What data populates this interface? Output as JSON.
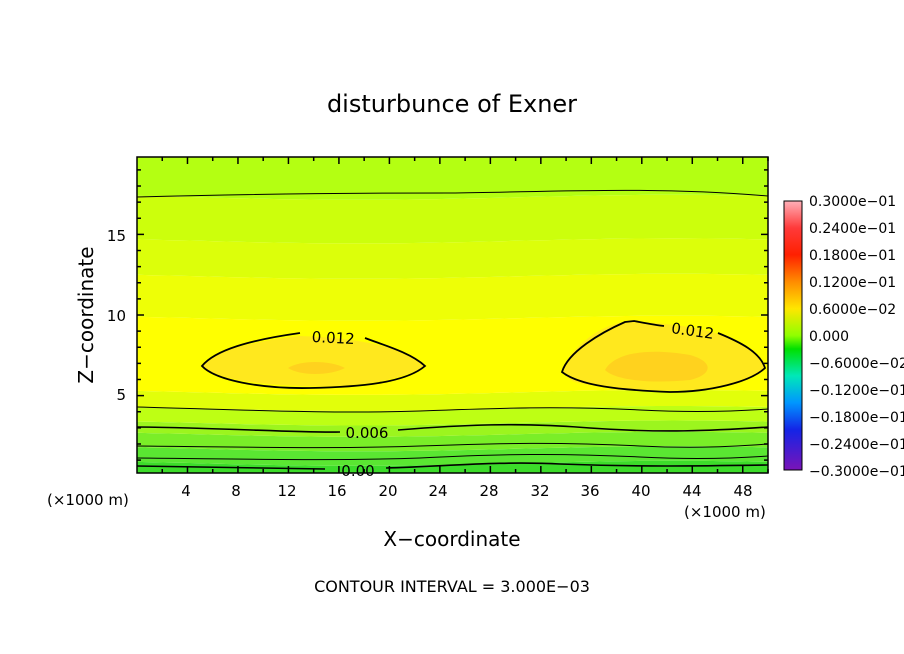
{
  "chart_data": {
    "type": "contour",
    "title": "disturbunce of Exner",
    "xlabel": "X−coordinate",
    "ylabel": "Z−coordinate",
    "x_unit": "(×1000 m)",
    "z_unit": "(×1000 m)",
    "xlim": [
      0,
      50
    ],
    "ylim": [
      0.2,
      19.8
    ],
    "x_ticks": [
      "4",
      "8",
      "12",
      "16",
      "20",
      "24",
      "28",
      "32",
      "36",
      "40",
      "44",
      "48"
    ],
    "y_ticks": [
      "5",
      "10",
      "15"
    ],
    "contour_interval_text": "CONTOUR INTERVAL = 3.000E−03",
    "contour_levels": [
      0.0,
      0.003,
      0.006,
      0.009,
      0.012
    ],
    "contour_labels": [
      {
        "text": "0.012",
        "x": 15.5,
        "z": 8.2
      },
      {
        "text": "0.012",
        "x": 43.8,
        "z": 8.6
      },
      {
        "text": "0.006",
        "x": 18.0,
        "z": 2.7
      },
      {
        "text": "0.00",
        "x": 17.5,
        "z": 0.3
      }
    ],
    "colorbar": {
      "labels": [
        "0.3000e−01",
        "0.2400e−01",
        "0.1800e−01",
        "0.1200e−01",
        "0.6000e−02",
        "0.000",
        "−0.6000e−02",
        "−0.1200e−01",
        "−0.1800e−01",
        "−0.2400e−01",
        "−0.3000e−01"
      ],
      "colors": [
        "#ff9aa6",
        "#ff3030",
        "#ff5a00",
        "#ff9a00",
        "#ffe000",
        "#b6ff00",
        "#00e500",
        "#00e0c8",
        "#0092ff",
        "#1e24e0",
        "#7a1ab4"
      ]
    },
    "fill_bands": [
      {
        "from": 0.0,
        "to": 0.2,
        "color": "#1ed21e"
      },
      {
        "from": 0.2,
        "to": 0.8,
        "color": "#3cdc2a"
      },
      {
        "from": 0.8,
        "to": 1.7,
        "color": "#5ae632"
      },
      {
        "from": 1.7,
        "to": 2.6,
        "color": "#7aee28"
      },
      {
        "from": 2.6,
        "to": 3.3,
        "color": "#9cf51e"
      },
      {
        "from": 3.3,
        "to": 4.2,
        "color": "#beff14"
      },
      {
        "from": 4.2,
        "to": 5.2,
        "color": "#e2ff0a"
      },
      {
        "from": 5.2,
        "to": 9.8,
        "color": "#ffff00"
      },
      {
        "from": 9.8,
        "to": 12.4,
        "color": "#eeff06"
      },
      {
        "from": 12.4,
        "to": 14.6,
        "color": "#dcff0a"
      },
      {
        "from": 14.6,
        "to": 17.3,
        "color": "#ccff0c"
      },
      {
        "from": 17.3,
        "to": 19.8,
        "color": "#b4ff12"
      }
    ]
  }
}
